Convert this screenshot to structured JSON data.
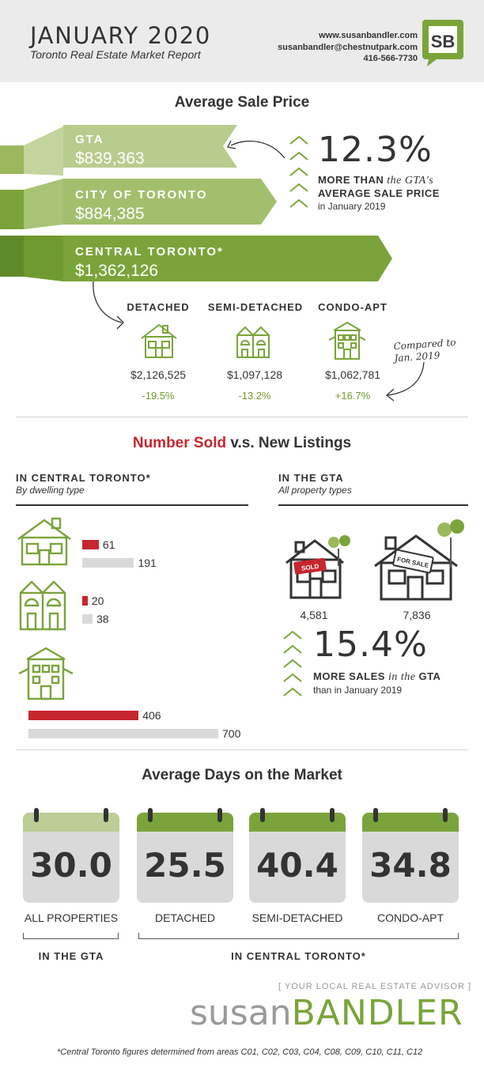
{
  "header": {
    "title": "JANUARY 2020",
    "subtitle": "Toronto Real Estate Market Report",
    "website": "www.susanbandler.com",
    "email": "susanbandler@chestnutpark.com",
    "phone": "416-566-7730",
    "logo_text": "SB"
  },
  "avg_price": {
    "title": "Average Sale Price",
    "gta_label": "GTA",
    "gta_value": "$839,363",
    "city_label": "CITY OF TORONTO",
    "city_value": "$884,385",
    "central_label": "CENTRAL TORONTO*",
    "central_value": "$1,362,126",
    "pct": "12.3%",
    "pct_line1_a": "MORE THAN",
    "pct_line1_b": " the GTA's",
    "pct_line2": "AVERAGE SALE PRICE",
    "pct_line3": "in January 2019",
    "types": [
      {
        "label": "DETACHED",
        "price": "$2,126,525",
        "change": "-19.5%"
      },
      {
        "label": "SEMI-DETACHED",
        "price": "$1,097,128",
        "change": "-13.2%"
      },
      {
        "label": "CONDO-APT",
        "price": "$1,062,781",
        "change": "+16.7%"
      }
    ],
    "hand_note": "Compared to Jan. 2019"
  },
  "sold_listings": {
    "title_red": "Number Sold",
    "title_rest": " v.s. New Listings",
    "central_head": "IN CENTRAL TORONTO*",
    "central_sub": "By dwelling type",
    "gta_head": "IN THE GTA",
    "gta_sub": "All property types",
    "central_data": [
      {
        "sold": "61",
        "listings": "191"
      },
      {
        "sold": "20",
        "listings": "38"
      },
      {
        "sold": "406",
        "listings": "700"
      }
    ],
    "gta_sold": "4,581",
    "gta_listings": "7,836",
    "sold_sign": "SOLD",
    "sale_sign": "FOR SALE",
    "pct": "15.4%",
    "pct_line1_a": "MORE SALES",
    "pct_line1_b": " in the ",
    "pct_line1_c": "GTA",
    "pct_line2": "than in January 2019"
  },
  "days": {
    "title": "Average Days on the Market",
    "cards": [
      {
        "value": "30.0",
        "label": "ALL PROPERTIES"
      },
      {
        "value": "25.5",
        "label": "DETACHED"
      },
      {
        "value": "40.4",
        "label": "SEMI-DETACHED"
      },
      {
        "value": "34.8",
        "label": "CONDO-APT"
      }
    ],
    "gta_bracket": "IN THE GTA",
    "central_bracket": "IN CENTRAL TORONTO*"
  },
  "footer": {
    "tagline": "[ YOUR LOCAL REAL ESTATE ADVISOR ]",
    "brand_light": "susan",
    "brand_bold": "BANDLER",
    "footnote": "*Central Toronto figures determined from areas C01, C02, C03, C04, C08, C09, C10, C11, C12"
  },
  "colors": {
    "green_light": "#b5c98a",
    "green_mid": "#9bb85c",
    "green_dark": "#7aa43a",
    "red": "#c6262e",
    "grey": "#d9d9d9"
  }
}
